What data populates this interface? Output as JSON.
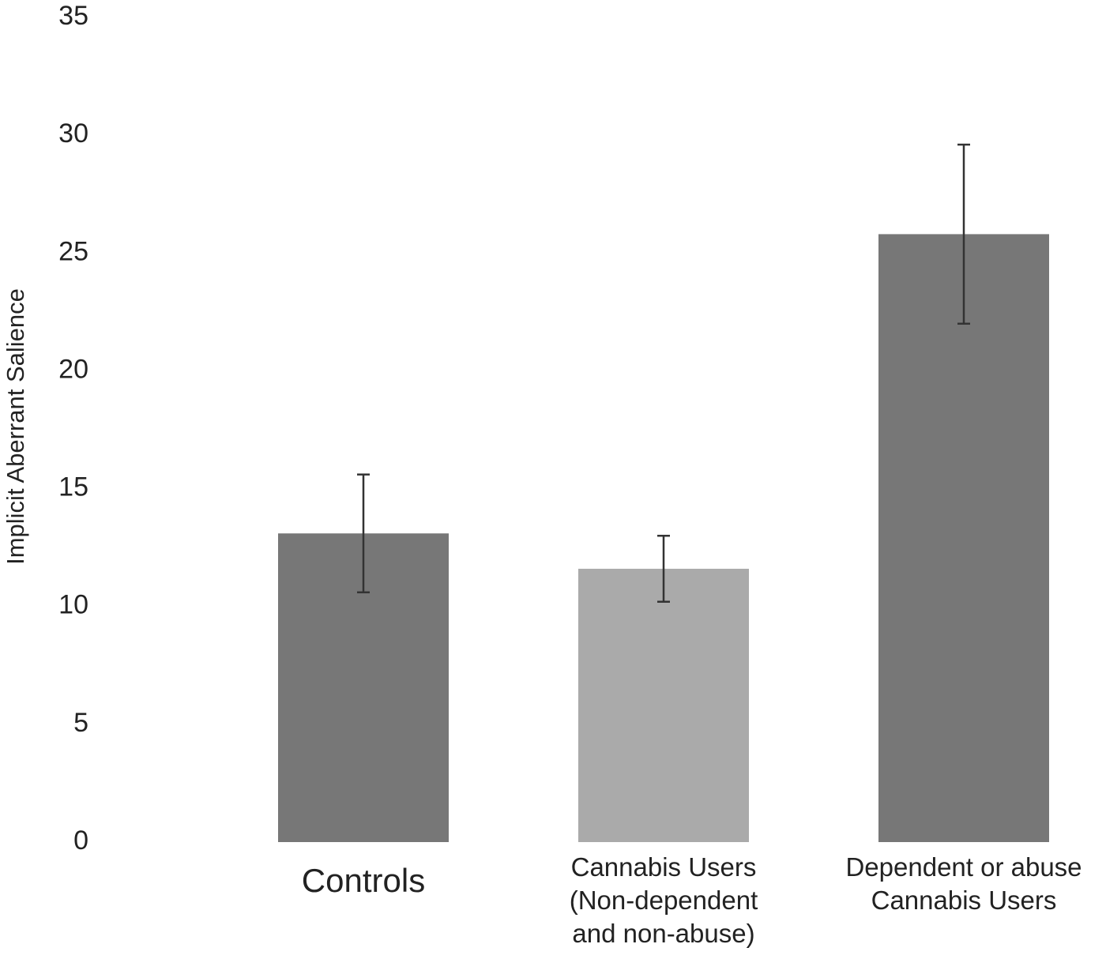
{
  "chart_data": {
    "type": "bar",
    "ylabel": "Implicit Aberrant Salience",
    "categories": [
      "Controls",
      "Cannabis Users\n(Non-dependent\nand non-abuse)",
      "Dependent or abuse\nCannabis Users"
    ],
    "values": [
      13.1,
      11.6,
      25.8
    ],
    "errors": [
      2.5,
      1.4,
      3.8
    ],
    "colors": [
      "#777777",
      "#aaaaaa",
      "#777777"
    ],
    "ylim": [
      0,
      35
    ],
    "yticks": [
      0,
      5,
      10,
      15,
      20,
      25,
      30,
      35
    ],
    "grid": false
  }
}
